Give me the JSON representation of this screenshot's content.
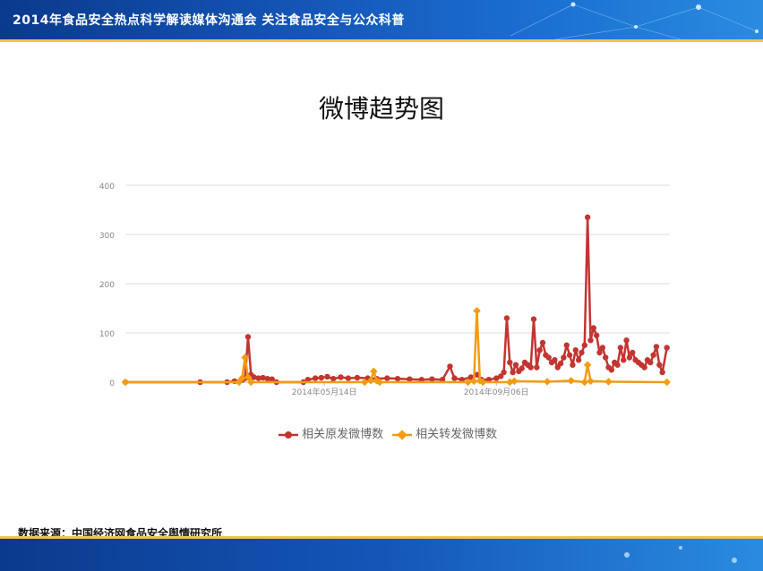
{
  "banner": {
    "title": "2014年食品安全热点科学解读媒体沟通会  关注食品安全与公众科普"
  },
  "slide_title": "微博趋势图",
  "source": "数据来源：中国经济网食品安全舆情研究所",
  "colors": {
    "series_original": "#c23531",
    "series_forward": "#f39c12",
    "banner": "#1456b8",
    "accent_line": "#f0c64a",
    "grid": "#dddddd",
    "tick_text": "#888888"
  },
  "chart_data": {
    "type": "line",
    "title": "",
    "xlabel": "",
    "ylabel": "",
    "ylim": [
      0,
      400
    ],
    "yticks": [
      "0",
      "100",
      "200",
      "300",
      "400"
    ],
    "x_start": "2014-01-01",
    "x_end": "2014-12-31",
    "xtick_labels": [
      {
        "date": "2014-05-14",
        "label": "2014年05月14日"
      },
      {
        "date": "2014-09-06",
        "label": "2014年09月06日"
      }
    ],
    "grid": true,
    "legend_position": "bottom",
    "series": [
      {
        "name": "相关原发微博数",
        "points": [
          [
            "2014-01-01",
            0
          ],
          [
            "2014-02-20",
            0
          ],
          [
            "2014-03-10",
            0
          ],
          [
            "2014-03-15",
            2
          ],
          [
            "2014-03-20",
            4
          ],
          [
            "2014-03-22",
            8
          ],
          [
            "2014-03-24",
            92
          ],
          [
            "2014-03-26",
            15
          ],
          [
            "2014-03-28",
            10
          ],
          [
            "2014-03-31",
            8
          ],
          [
            "2014-04-03",
            9
          ],
          [
            "2014-04-06",
            7
          ],
          [
            "2014-04-09",
            6
          ],
          [
            "2014-04-12",
            0
          ],
          [
            "2014-04-30",
            0
          ],
          [
            "2014-05-03",
            5
          ],
          [
            "2014-05-08",
            8
          ],
          [
            "2014-05-12",
            9
          ],
          [
            "2014-05-16",
            11
          ],
          [
            "2014-05-20",
            7
          ],
          [
            "2014-05-25",
            10
          ],
          [
            "2014-05-30",
            8
          ],
          [
            "2014-06-05",
            9
          ],
          [
            "2014-06-12",
            8
          ],
          [
            "2014-06-18",
            7
          ],
          [
            "2014-06-25",
            8
          ],
          [
            "2014-07-02",
            7
          ],
          [
            "2014-07-10",
            6
          ],
          [
            "2014-07-18",
            5
          ],
          [
            "2014-07-25",
            6
          ],
          [
            "2014-08-01",
            5
          ],
          [
            "2014-08-06",
            32
          ],
          [
            "2014-08-09",
            8
          ],
          [
            "2014-08-14",
            5
          ],
          [
            "2014-08-20",
            10
          ],
          [
            "2014-08-24",
            15
          ],
          [
            "2014-08-27",
            5
          ],
          [
            "2014-09-01",
            5
          ],
          [
            "2014-09-06",
            8
          ],
          [
            "2014-09-09",
            12
          ],
          [
            "2014-09-11",
            20
          ],
          [
            "2014-09-13",
            130
          ],
          [
            "2014-09-15",
            40
          ],
          [
            "2014-09-17",
            20
          ],
          [
            "2014-09-19",
            35
          ],
          [
            "2014-09-21",
            22
          ],
          [
            "2014-09-23",
            28
          ],
          [
            "2014-09-25",
            40
          ],
          [
            "2014-09-27",
            35
          ],
          [
            "2014-09-29",
            30
          ],
          [
            "2014-10-01",
            128
          ],
          [
            "2014-10-03",
            30
          ],
          [
            "2014-10-05",
            65
          ],
          [
            "2014-10-07",
            80
          ],
          [
            "2014-10-09",
            55
          ],
          [
            "2014-10-11",
            50
          ],
          [
            "2014-10-13",
            40
          ],
          [
            "2014-10-15",
            45
          ],
          [
            "2014-10-17",
            30
          ],
          [
            "2014-10-19",
            38
          ],
          [
            "2014-10-21",
            50
          ],
          [
            "2014-10-23",
            75
          ],
          [
            "2014-10-25",
            55
          ],
          [
            "2014-10-27",
            35
          ],
          [
            "2014-10-29",
            65
          ],
          [
            "2014-10-31",
            45
          ],
          [
            "2014-11-02",
            60
          ],
          [
            "2014-11-04",
            75
          ],
          [
            "2014-11-06",
            335
          ],
          [
            "2014-11-08",
            85
          ],
          [
            "2014-11-10",
            110
          ],
          [
            "2014-11-12",
            95
          ],
          [
            "2014-11-14",
            60
          ],
          [
            "2014-11-16",
            70
          ],
          [
            "2014-11-18",
            50
          ],
          [
            "2014-11-20",
            30
          ],
          [
            "2014-11-22",
            25
          ],
          [
            "2014-11-24",
            40
          ],
          [
            "2014-11-26",
            35
          ],
          [
            "2014-11-28",
            70
          ],
          [
            "2014-11-30",
            45
          ],
          [
            "2014-12-02",
            85
          ],
          [
            "2014-12-04",
            50
          ],
          [
            "2014-12-06",
            60
          ],
          [
            "2014-12-08",
            45
          ],
          [
            "2014-12-10",
            40
          ],
          [
            "2014-12-12",
            35
          ],
          [
            "2014-12-14",
            30
          ],
          [
            "2014-12-16",
            45
          ],
          [
            "2014-12-18",
            40
          ],
          [
            "2014-12-20",
            55
          ],
          [
            "2014-12-22",
            72
          ],
          [
            "2014-12-24",
            35
          ],
          [
            "2014-12-26",
            20
          ],
          [
            "2014-12-29",
            70
          ]
        ]
      },
      {
        "name": "相关转发微博数",
        "points": [
          [
            "2014-01-01",
            0
          ],
          [
            "2014-03-18",
            0
          ],
          [
            "2014-03-20",
            8
          ],
          [
            "2014-03-22",
            50
          ],
          [
            "2014-03-24",
            10
          ],
          [
            "2014-03-26",
            0
          ],
          [
            "2014-06-10",
            0
          ],
          [
            "2014-06-14",
            3
          ],
          [
            "2014-06-16",
            22
          ],
          [
            "2014-06-18",
            3
          ],
          [
            "2014-06-20",
            0
          ],
          [
            "2014-08-18",
            0
          ],
          [
            "2014-08-22",
            2
          ],
          [
            "2014-08-24",
            145
          ],
          [
            "2014-08-26",
            3
          ],
          [
            "2014-08-28",
            0
          ],
          [
            "2014-09-15",
            0
          ],
          [
            "2014-09-18",
            2
          ],
          [
            "2014-10-10",
            1
          ],
          [
            "2014-10-26",
            3
          ],
          [
            "2014-11-04",
            0
          ],
          [
            "2014-11-06",
            35
          ],
          [
            "2014-11-08",
            2
          ],
          [
            "2014-11-20",
            1
          ],
          [
            "2014-12-29",
            0
          ]
        ]
      }
    ]
  }
}
